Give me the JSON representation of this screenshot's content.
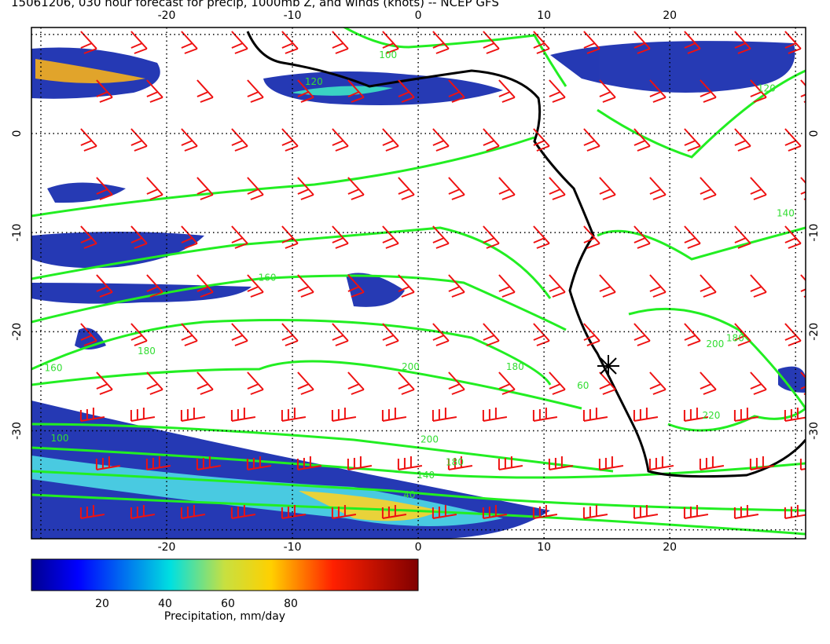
{
  "title": "15061206, 030 hour forecast for precip, 1000mb Z, and winds (knots) -- NCEP GFS",
  "map": {
    "xlim": [
      -30.75,
      30.8
    ],
    "ylim": [
      -40.9,
      10.7
    ],
    "xticks": [
      -20,
      -10,
      0,
      10,
      20
    ],
    "yticks": [
      0,
      -10,
      -20,
      -30
    ],
    "contour_labels": [
      {
        "value": 120,
        "lon": -8.3,
        "lat": 5.2
      },
      {
        "value": 100,
        "lon": -2.4,
        "lat": 7.9
      },
      {
        "value": 160,
        "lon": -12,
        "lat": -14.6
      },
      {
        "value": 180,
        "lon": -21.6,
        "lat": -22
      },
      {
        "value": 160,
        "lon": -29,
        "lat": -23.7
      },
      {
        "value": 200,
        "lon": -0.6,
        "lat": -23.6
      },
      {
        "value": 180,
        "lon": 7.7,
        "lat": -23.6
      },
      {
        "value": 200,
        "lon": 0.9,
        "lat": -30.9
      },
      {
        "value": 180,
        "lon": 2.9,
        "lat": -33.2
      },
      {
        "value": 140,
        "lon": 0.6,
        "lat": -34.5
      },
      {
        "value": 100,
        "lon": -28.5,
        "lat": -30.8
      },
      {
        "value": 60,
        "lon": 13.1,
        "lat": -25.5
      },
      {
        "value": 200,
        "lon": 23.6,
        "lat": -21.3
      },
      {
        "value": 180,
        "lon": 25.2,
        "lat": -20.7
      },
      {
        "value": 220,
        "lon": 23.3,
        "lat": -28.5
      },
      {
        "value": 120,
        "lon": 27.7,
        "lat": 4.5
      },
      {
        "value": 140,
        "lon": 29.2,
        "lat": -8.1
      },
      {
        "value": 40,
        "lon": -0.7,
        "lat": -36.5
      }
    ]
  },
  "colorbar": {
    "label": "Precipitation, mm/day",
    "ticks": [
      20,
      40,
      60,
      80
    ],
    "lim": [
      -2.5,
      120.5
    ]
  }
}
